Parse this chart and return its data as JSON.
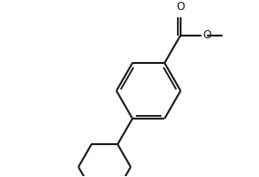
{
  "background_color": "#ffffff",
  "line_color": "#1a1a1a",
  "line_width": 1.5,
  "figsize": [
    2.84,
    1.94
  ],
  "dpi": 100,
  "xlim": [
    0,
    10
  ],
  "ylim": [
    0,
    7
  ]
}
